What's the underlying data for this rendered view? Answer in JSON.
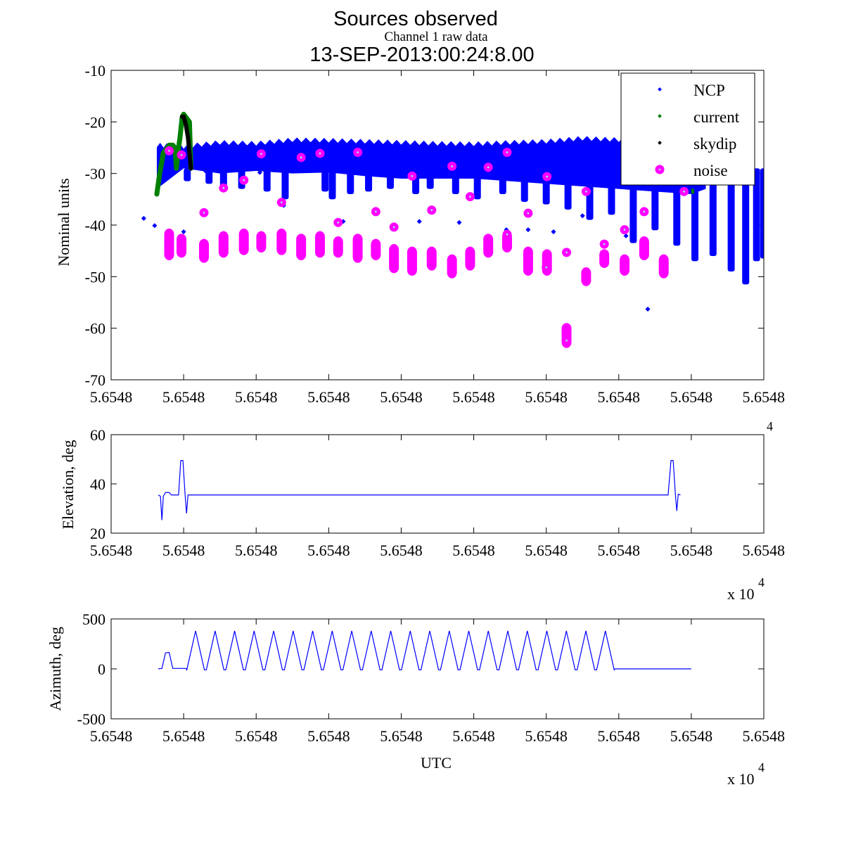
{
  "figure": {
    "title_line1": "Sources observed",
    "title_line2": "13-SEP-2013:00:24:8.00",
    "subtitle": "Channel 1 raw data",
    "x_exponent_label": "x 10",
    "x_exponent_power": "4"
  },
  "chart_data": [
    {
      "type": "scatter",
      "name": "raw-data-panel",
      "title": "Channel 1 raw data",
      "xlabel": "",
      "ylabel": "Nominal units",
      "ylim": [
        -70,
        -10
      ],
      "yticks": [
        "-10",
        "-20",
        "-30",
        "-40",
        "-50",
        "-60",
        "-70"
      ],
      "ytick_values": [
        -10,
        -20,
        -30,
        -40,
        -50,
        -60,
        -70
      ],
      "xlim": [
        0,
        9
      ],
      "xtick_values": [
        0,
        1,
        2,
        3,
        4,
        5,
        6,
        7,
        8,
        9
      ],
      "xticks": [
        "5.6548",
        "5.6548",
        "5.6548",
        "5.6548",
        "5.6548",
        "5.6548",
        "5.6548",
        "5.6548",
        "5.6548",
        "5.6548"
      ],
      "x_units_note": "x positions expressed as fraction of tick spacing (all tick labels read 5.6548 x 10^4)",
      "grid": false,
      "legend_position": "top-right",
      "series": [
        {
          "name": "NCP",
          "color": "#0000ff",
          "marker": "dot",
          "band_top": [
            [
              0.63,
              -24.5
            ],
            [
              1.0,
              -24.8
            ],
            [
              1.5,
              -24
            ],
            [
              2.0,
              -24.2
            ],
            [
              2.5,
              -23.5
            ],
            [
              3.0,
              -23.6
            ],
            [
              3.5,
              -23.8
            ],
            [
              4.0,
              -24
            ],
            [
              4.5,
              -24.2
            ],
            [
              5.0,
              -24.3
            ],
            [
              5.5,
              -24
            ],
            [
              6.0,
              -23.8
            ],
            [
              6.5,
              -23.2
            ],
            [
              7.0,
              -23.5
            ],
            [
              7.5,
              -23.2
            ],
            [
              8.0,
              -23
            ],
            [
              8.2,
              -24
            ]
          ],
          "band_bottom": [
            [
              0.63,
              -33
            ],
            [
              1.0,
              -29
            ],
            [
              1.5,
              -30
            ],
            [
              2.0,
              -29.5
            ],
            [
              2.5,
              -30
            ],
            [
              3.0,
              -29.8
            ],
            [
              3.5,
              -30.5
            ],
            [
              4.0,
              -31
            ],
            [
              4.5,
              -31
            ],
            [
              5.0,
              -31
            ],
            [
              5.5,
              -31.5
            ],
            [
              6.0,
              -32
            ],
            [
              6.5,
              -32.5
            ],
            [
              7.0,
              -33
            ],
            [
              7.5,
              -33.5
            ],
            [
              8.0,
              -34
            ],
            [
              8.2,
              -33
            ]
          ],
          "spikes": [
            [
              1.05,
              -31.5
            ],
            [
              1.35,
              -32
            ],
            [
              1.55,
              -32.5
            ],
            [
              1.8,
              -33
            ],
            [
              2.15,
              -33.5
            ],
            [
              2.4,
              -35
            ],
            [
              2.95,
              -33.5
            ],
            [
              3.05,
              -35
            ],
            [
              3.3,
              -34
            ],
            [
              3.55,
              -33.5
            ],
            [
              3.85,
              -33
            ],
            [
              4.2,
              -34
            ],
            [
              4.4,
              -33
            ],
            [
              4.75,
              -34
            ],
            [
              5.05,
              -35
            ],
            [
              5.4,
              -34
            ],
            [
              5.7,
              -35.5
            ],
            [
              6.0,
              -36
            ],
            [
              6.3,
              -37
            ],
            [
              6.6,
              -39
            ],
            [
              6.9,
              -38
            ],
            [
              7.2,
              -43.5
            ],
            [
              7.5,
              -41
            ],
            [
              7.8,
              -44
            ],
            [
              8.05,
              -47
            ],
            [
              8.3,
              -46
            ],
            [
              8.55,
              -49
            ],
            [
              8.75,
              -51.5
            ],
            [
              8.9,
              -47
            ],
            [
              9.0,
              -46.5
            ],
            [
              9.15,
              -44
            ]
          ],
          "outliers": [
            [
              0.45,
              -38.7
            ],
            [
              0.6,
              -40.1
            ],
            [
              1.0,
              -41.3
            ],
            [
              1.3,
              -29.5
            ],
            [
              2.05,
              -29.8
            ],
            [
              2.38,
              -36.2
            ],
            [
              3.2,
              -39.3
            ],
            [
              3.65,
              -29.9
            ],
            [
              4.25,
              -39.3
            ],
            [
              4.8,
              -39.5
            ],
            [
              5.45,
              -40.9
            ],
            [
              5.75,
              -40.9
            ],
            [
              6.1,
              -41.3
            ],
            [
              6.5,
              -38.2
            ],
            [
              7.1,
              -42.1
            ],
            [
              7.4,
              -56.3
            ]
          ]
        },
        {
          "name": "current",
          "color": "#008000",
          "marker": "dot",
          "points": [
            [
              0.63,
              -34
            ],
            [
              0.67,
              -30
            ],
            [
              0.72,
              -26
            ],
            [
              0.8,
              -24.5
            ],
            [
              0.85,
              -24.5
            ],
            [
              0.88,
              -25
            ],
            [
              0.9,
              -29
            ],
            [
              0.92,
              -26
            ],
            [
              0.95,
              -23
            ],
            [
              0.98,
              -19
            ],
            [
              1.0,
              -18.5
            ],
            [
              1.08,
              -20
            ],
            [
              1.1,
              -29
            ],
            [
              8.02,
              -33.5
            ]
          ]
        },
        {
          "name": "skydip",
          "color": "#000000",
          "marker": "dot",
          "points": [
            [
              0.98,
              -19
            ],
            [
              1.0,
              -19
            ],
            [
              1.03,
              -20.5
            ],
            [
              1.06,
              -23
            ],
            [
              1.08,
              -26
            ],
            [
              1.1,
              -29
            ]
          ]
        },
        {
          "name": "noise",
          "color": "#ff00ff",
          "marker": "circle",
          "singles": [
            [
              0.8,
              -25.6
            ],
            [
              0.97,
              -26.4
            ],
            [
              1.28,
              -37.6
            ],
            [
              1.55,
              -32.8
            ],
            [
              1.83,
              -31.3
            ],
            [
              2.07,
              -26.2
            ],
            [
              2.35,
              -35.6
            ],
            [
              2.62,
              -26.9
            ],
            [
              2.88,
              -26.1
            ],
            [
              3.13,
              -39.5
            ],
            [
              3.4,
              -25.9
            ],
            [
              3.65,
              -37.4
            ],
            [
              3.9,
              -40.4
            ],
            [
              4.15,
              -30.5
            ],
            [
              4.42,
              -37.1
            ],
            [
              4.7,
              -28.6
            ],
            [
              4.95,
              -34.5
            ],
            [
              5.2,
              -28.8
            ],
            [
              5.46,
              -25.9
            ],
            [
              5.46,
              -41.8
            ],
            [
              5.75,
              -37.7
            ],
            [
              6.01,
              -30.6
            ],
            [
              6.28,
              -45.3
            ],
            [
              6.55,
              -33.5
            ],
            [
              6.8,
              -43.7
            ],
            [
              7.08,
              -40.9
            ],
            [
              7.35,
              -37.4
            ],
            [
              7.9,
              -33.5
            ],
            [
              6.0,
              -48.2
            ],
            [
              6.28,
              -62.4
            ]
          ],
          "clusters": [
            [
              0.8,
              -41.5,
              -46
            ],
            [
              0.97,
              -42.5,
              -45.5
            ],
            [
              1.28,
              -43.5,
              -46.5
            ],
            [
              1.55,
              -42,
              -45.5
            ],
            [
              1.83,
              -41.5,
              -45
            ],
            [
              2.07,
              -42,
              -44.5
            ],
            [
              2.35,
              -41.5,
              -45
            ],
            [
              2.62,
              -42.5,
              -46
            ],
            [
              2.88,
              -42,
              -45.5
            ],
            [
              3.13,
              -43,
              -45.5
            ],
            [
              3.4,
              -42.5,
              -46.5
            ],
            [
              3.65,
              -43.5,
              -46
            ],
            [
              3.9,
              -44.5,
              -48.5
            ],
            [
              4.15,
              -45,
              -49
            ],
            [
              4.42,
              -45,
              -48
            ],
            [
              4.7,
              -46.5,
              -49.5
            ],
            [
              4.95,
              -45,
              -48
            ],
            [
              5.2,
              -42.5,
              -45.5
            ],
            [
              5.46,
              -42,
              -44.5
            ],
            [
              5.75,
              -45,
              -49
            ],
            [
              6.01,
              -45.5,
              -49
            ],
            [
              6.28,
              -59.8,
              -63
            ],
            [
              6.55,
              -49,
              -51
            ],
            [
              6.8,
              -45.5,
              -47.5
            ],
            [
              7.08,
              -46.5,
              -49
            ],
            [
              7.35,
              -43,
              -46
            ],
            [
              7.62,
              -46.5,
              -49.5
            ]
          ]
        }
      ]
    },
    {
      "type": "line",
      "name": "elevation-panel",
      "ylabel": "Elevation, deg",
      "xlabel": "",
      "ylim": [
        20,
        60
      ],
      "yticks": [
        "60",
        "40",
        "20"
      ],
      "ytick_values": [
        60,
        40,
        20
      ],
      "xlim": [
        0,
        9
      ],
      "xtick_values": [
        0,
        1,
        2,
        3,
        4,
        5,
        6,
        7,
        8,
        9
      ],
      "xticks": [
        "5.6548",
        "5.6548",
        "5.6548",
        "5.6548",
        "5.6548",
        "5.6548",
        "5.6548",
        "5.6548",
        "5.6548",
        "5.6548"
      ],
      "grid": false,
      "series": [
        {
          "name": "elevation",
          "color": "#0000ff",
          "points": [
            [
              0.65,
              35.5
            ],
            [
              0.68,
              35
            ],
            [
              0.7,
              25.3
            ],
            [
              0.72,
              35
            ],
            [
              0.75,
              36.5
            ],
            [
              0.8,
              36.5
            ],
            [
              0.83,
              35.5
            ],
            [
              0.93,
              35.5
            ],
            [
              0.96,
              49.5
            ],
            [
              0.99,
              49.5
            ],
            [
              1.02,
              35.5
            ],
            [
              1.04,
              28
            ],
            [
              1.06,
              35.5
            ],
            [
              7.66,
              35.5
            ],
            [
              7.68,
              35.5
            ],
            [
              7.72,
              49.5
            ],
            [
              7.75,
              49.5
            ],
            [
              7.78,
              36
            ],
            [
              7.8,
              29
            ],
            [
              7.82,
              35.8
            ],
            [
              7.85,
              35.5
            ]
          ]
        }
      ]
    },
    {
      "type": "line",
      "name": "azimuth-panel",
      "ylabel": "Azimuth, deg",
      "xlabel": "UTC",
      "ylim": [
        -500,
        500
      ],
      "yticks": [
        "500",
        "0",
        "-500"
      ],
      "ytick_values": [
        500,
        0,
        -500
      ],
      "xlim": [
        0,
        9
      ],
      "xtick_values": [
        0,
        1,
        2,
        3,
        4,
        5,
        6,
        7,
        8,
        9
      ],
      "xticks": [
        "5.6548",
        "5.6548",
        "5.6548",
        "5.6548",
        "5.6548",
        "5.6548",
        "5.6548",
        "5.6548",
        "5.6548",
        "5.6548"
      ],
      "grid": false,
      "series": [
        {
          "name": "azimuth",
          "color": "#0000ff",
          "pre_scan": [
            [
              0.65,
              0
            ],
            [
              0.7,
              5
            ],
            [
              0.75,
              160
            ],
            [
              0.8,
              165
            ],
            [
              0.85,
              5
            ],
            [
              1.03,
              5
            ]
          ],
          "sweep_start": 1.03,
          "sweep_end": 6.95,
          "sweep_count": 22,
          "sweep_max": 380,
          "sweep_min": -10,
          "post_scan": [
            [
              6.95,
              0
            ],
            [
              8.0,
              0
            ]
          ]
        }
      ]
    }
  ]
}
